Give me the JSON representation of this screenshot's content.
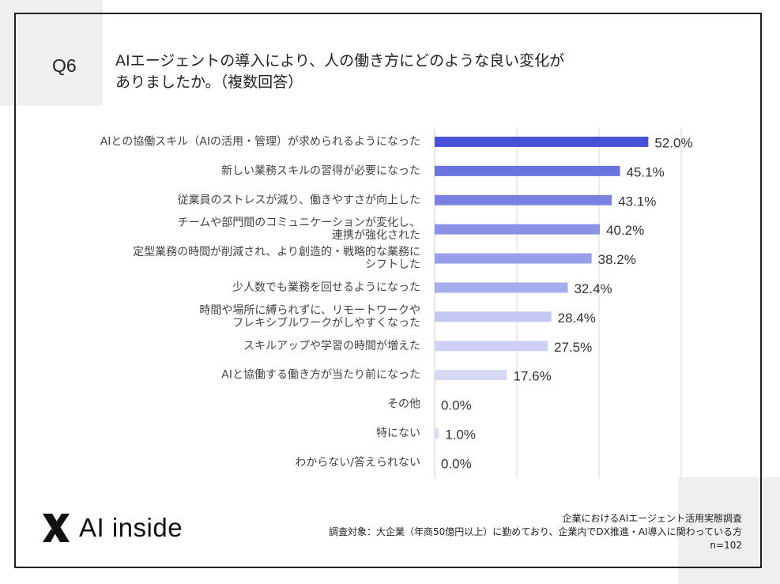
{
  "question": {
    "number": "Q6",
    "title_line1": "AIエージェントの導入により、人の働き方にどのような良い変化が",
    "title_line2": "ありましたか。（複数回答）"
  },
  "chart_data": {
    "type": "bar",
    "orientation": "horizontal",
    "categories": [
      [
        "AIとの協働スキル（AIの活用・管理）が求められるようになった"
      ],
      [
        "新しい業務スキルの習得が必要になった"
      ],
      [
        "従業員のストレスが減り、働きやすさが向上した"
      ],
      [
        "チームや部門間のコミュニケーションが変化し、",
        "連携が強化された"
      ],
      [
        "定型業務の時間が削減され、より創造的・戦略的な業務に",
        "シフトした"
      ],
      [
        "少人数でも業務を回せるようになった"
      ],
      [
        "時間や場所に縛られずに、リモートワークや",
        "フレキシブルワークがしやすくなった"
      ],
      [
        "スキルアップや学習の時間が増えた"
      ],
      [
        "AIと協働する働き方が当たり前になった"
      ],
      [
        "その他"
      ],
      [
        "特にない"
      ],
      [
        "わからない/答えられない"
      ]
    ],
    "values": [
      52.0,
      45.1,
      43.1,
      40.2,
      38.2,
      32.4,
      28.4,
      27.5,
      17.6,
      0.0,
      1.0,
      0.0
    ],
    "value_labels": [
      "52.0%",
      "45.1%",
      "43.1%",
      "40.2%",
      "38.2%",
      "32.4%",
      "28.4%",
      "27.5%",
      "17.6%",
      "0.0%",
      "1.0%",
      "0.0%"
    ],
    "bar_colors": [
      "#4751d8",
      "#6a74df",
      "#7880e2",
      "#8a92e6",
      "#979feb",
      "#a6aded",
      "#c3c8f3",
      "#cdd1f5",
      "#d6d9f6",
      "#d6d9f6",
      "#d9dcf7",
      "#d9dcf7"
    ],
    "xlim": [
      0,
      60
    ],
    "grid": true
  },
  "logo": {
    "text": "AI inside"
  },
  "footer": {
    "line1": "企業におけるAIエージェント活用実態調査",
    "line2": "調査対象：大企業（年商50億円以上）に勤めており、企業内でDX推進・AI導入に関わっている方",
    "line3": "n=102"
  }
}
